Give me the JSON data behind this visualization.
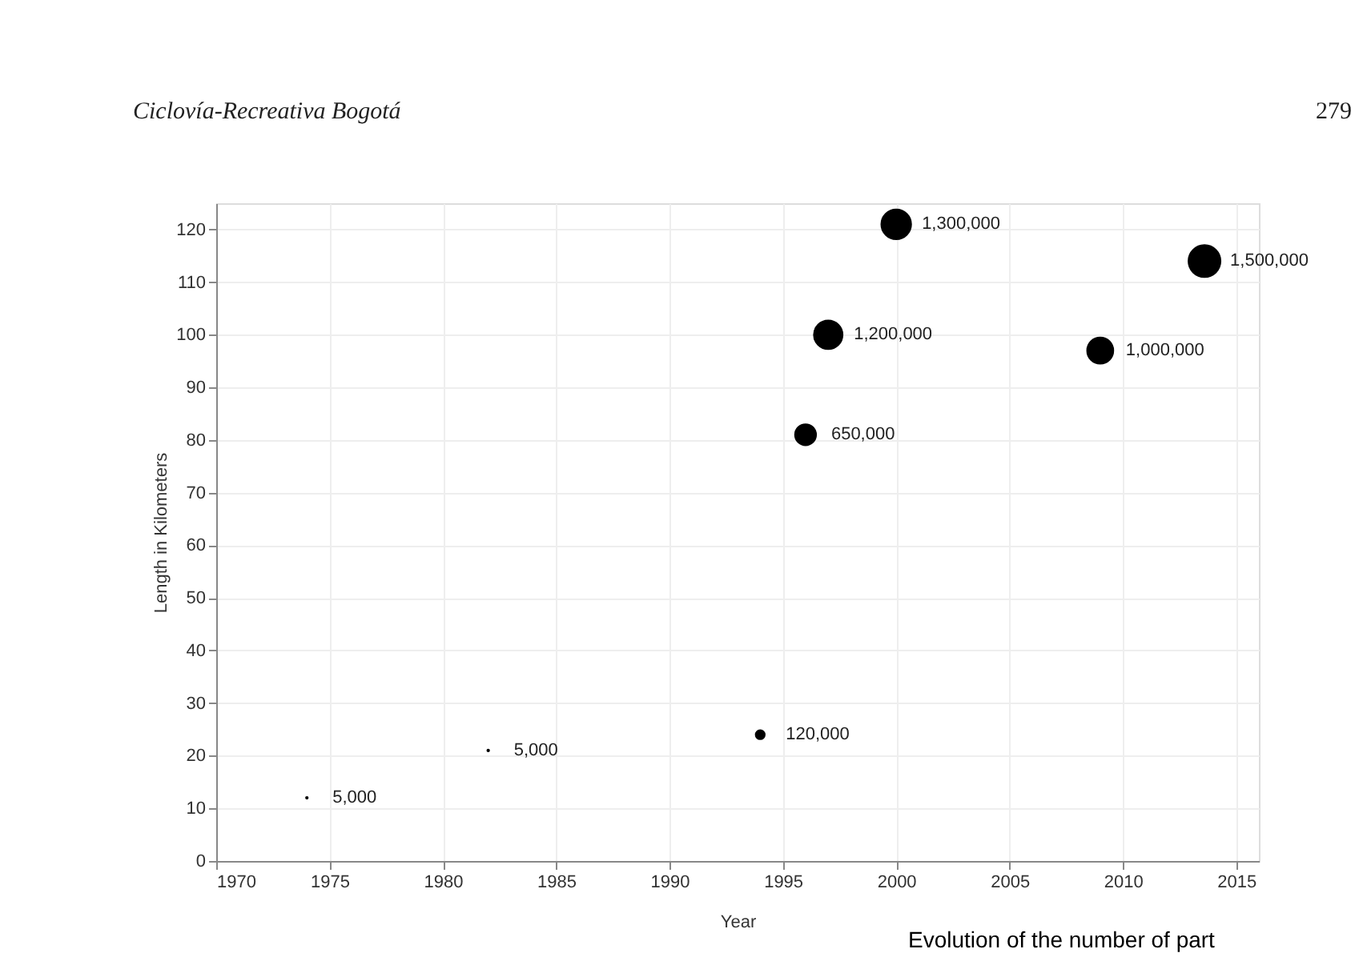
{
  "chart_data": {
    "type": "bubble",
    "title": "Ciclovía-Recreativa Bogotá",
    "xlabel": "Year",
    "ylabel": "Length in Kilometers",
    "annotations": [
      "279",
      "Evolution of the number of part",
      {
        "text": "5,000",
        "x": 1974,
        "y": 12
      },
      {
        "text": "5,000",
        "x": 1982,
        "y": 21
      },
      {
        "text": "120,000",
        "x": 1994,
        "y": 24
      },
      {
        "text": "650,000",
        "x": 1996,
        "y": 81
      },
      {
        "text": "1,200,000",
        "x": 1997,
        "y": 100
      },
      {
        "text": "1,300,000",
        "x": 2000,
        "y": 121
      },
      {
        "text": "1,000,000",
        "x": 2009,
        "y": 97
      },
      {
        "text": "1,500,000",
        "x": 2013.6,
        "y": 114
      }
    ],
    "x": [
      1974,
      1982,
      1994,
      1996,
      1997,
      2000,
      2009,
      2013.6
    ],
    "series": [
      {
        "color": "#000000",
        "values": [
          12,
          21,
          24,
          81,
          100,
          121,
          97,
          114
        ],
        "sizes": [
          0.0033,
          0.0033,
          0.08,
          0.433,
          0.8,
          0.867,
          0.667,
          1
        ]
      }
    ],
    "xlim": [
      1970,
      2016
    ],
    "xticks": [
      1970,
      1975,
      1980,
      1985,
      1990,
      1995,
      2000,
      2005,
      2010,
      2015
    ],
    "ylim": [
      0,
      125
    ],
    "yticks": [
      0,
      10,
      20,
      30,
      40,
      50,
      60,
      70,
      80,
      90,
      100,
      110,
      120
    ],
    "grid": true
  }
}
